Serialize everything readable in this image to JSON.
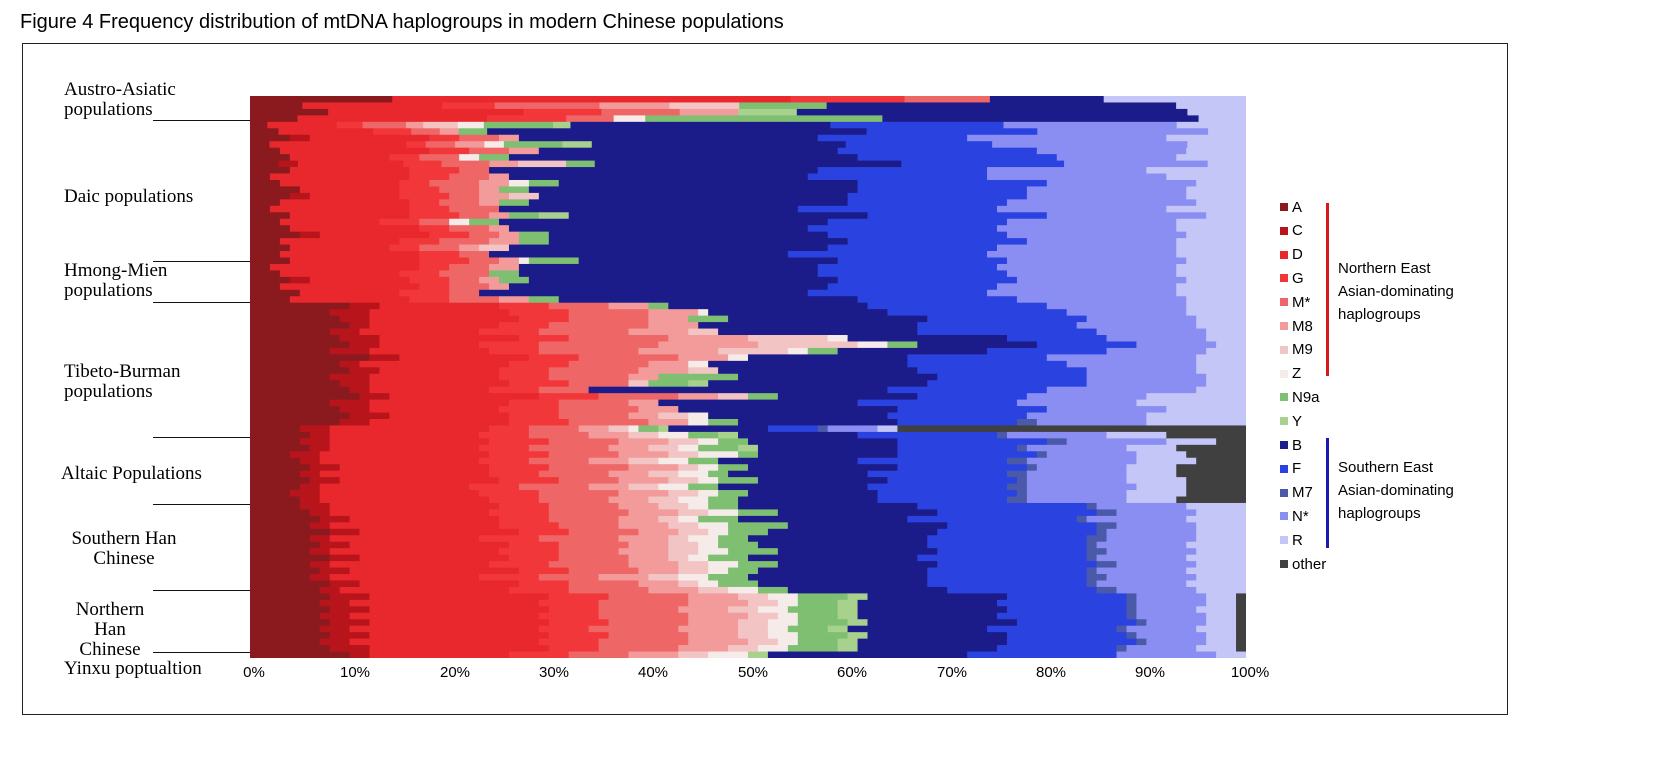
{
  "figure_title": "Figure 4 Frequency distribution of mtDNA haplogroups in modern Chinese populations",
  "groups": [
    {
      "label": "Austro-Asiatic\npopulations"
    },
    {
      "label": "Daic populations"
    },
    {
      "label": "Hmong-Mien\npopulations"
    },
    {
      "label": "Tibeto-Burman\npopulations"
    },
    {
      "label": "Altaic Populations"
    },
    {
      "label": "Southern Han\nChinese"
    },
    {
      "label": "Northern Han\nChinese"
    },
    {
      "label": "Yinxu poptualtion"
    }
  ],
  "legend": {
    "items": [
      {
        "label": "A",
        "color": "#8b1a1f"
      },
      {
        "label": "C",
        "color": "#b8141b"
      },
      {
        "label": "D",
        "color": "#e8282c"
      },
      {
        "label": "G",
        "color": "#f2373a"
      },
      {
        "label": "M*",
        "color": "#ee6666"
      },
      {
        "label": "M8",
        "color": "#f39a9a"
      },
      {
        "label": "M9",
        "color": "#f3c4c4"
      },
      {
        "label": "Z",
        "color": "#f5ecea"
      },
      {
        "label": "N9a",
        "color": "#7fbf72"
      },
      {
        "label": "Y",
        "color": "#a9d18e"
      },
      {
        "label": "B",
        "color": "#1b1b8a"
      },
      {
        "label": "F",
        "color": "#2a42e0"
      },
      {
        "label": "M7",
        "color": "#4a5aa8"
      },
      {
        "label": "N*",
        "color": "#8a8ef2"
      },
      {
        "label": "R",
        "color": "#c4c6f7"
      },
      {
        "label": "other",
        "color": "#404040"
      }
    ],
    "north_label": "Northern East\nAsian-dominating\nhaplogroups",
    "south_label": "Southern East\nAsian-dominating\nhaplogroups",
    "north_color": "#d8171c",
    "south_color": "#1a1ab0"
  },
  "chart_data": {
    "type": "bar",
    "orientation": "horizontal",
    "stacked": true,
    "normalized": true,
    "xlim": [
      0,
      100
    ],
    "xticks": [
      "0%",
      "10%",
      "20%",
      "30%",
      "40%",
      "50%",
      "60%",
      "70%",
      "80%",
      "90%",
      "100%"
    ],
    "series_order": [
      "A",
      "C",
      "D",
      "G",
      "M*",
      "M8",
      "M9",
      "Z",
      "N9a",
      "Y",
      "B",
      "F",
      "M7",
      "N*",
      "R",
      "other"
    ],
    "group_row_counts": [
      4,
      16,
      12,
      19,
      12,
      14,
      9,
      1
    ],
    "rows": [
      [
        5,
        0,
        14,
        4,
        3,
        0,
        0,
        0,
        0,
        0,
        4,
        0,
        0,
        0,
        5,
        0
      ],
      [
        3,
        0,
        8,
        3,
        6,
        4,
        4,
        0,
        5,
        0,
        20,
        0,
        0,
        0,
        4,
        0
      ],
      [
        4,
        0,
        10,
        4,
        4,
        3,
        0,
        0,
        0,
        3,
        20,
        0,
        0,
        0,
        3,
        0
      ],
      [
        3,
        0,
        12,
        5,
        3,
        0,
        0,
        2,
        15,
        0,
        20,
        0,
        0,
        0,
        3,
        0
      ],
      [
        2,
        0,
        8,
        3,
        5,
        2,
        4,
        3,
        8,
        2,
        30,
        20,
        0,
        20,
        8,
        0
      ],
      [
        3,
        0,
        10,
        4,
        3,
        2,
        0,
        0,
        3,
        0,
        40,
        18,
        0,
        18,
        4,
        0
      ],
      [
        4,
        2,
        12,
        3,
        4,
        2,
        0,
        0,
        0,
        0,
        30,
        15,
        0,
        20,
        8,
        0
      ],
      [
        2,
        0,
        14,
        2,
        3,
        3,
        0,
        2,
        6,
        3,
        26,
        15,
        0,
        20,
        6,
        0
      ],
      [
        3,
        0,
        15,
        4,
        4,
        3,
        0,
        0,
        0,
        0,
        30,
        20,
        0,
        15,
        6,
        0
      ],
      [
        4,
        0,
        10,
        3,
        4,
        0,
        0,
        2,
        3,
        0,
        35,
        20,
        0,
        12,
        7,
        0
      ],
      [
        3,
        2,
        11,
        4,
        5,
        3,
        5,
        0,
        3,
        0,
        32,
        17,
        0,
        15,
        4,
        0
      ],
      [
        4,
        0,
        12,
        5,
        3,
        0,
        0,
        0,
        0,
        0,
        33,
        17,
        0,
        16,
        10,
        0
      ],
      [
        2,
        0,
        14,
        4,
        4,
        2,
        0,
        0,
        0,
        0,
        30,
        18,
        0,
        18,
        8,
        0
      ],
      [
        3,
        0,
        12,
        3,
        5,
        3,
        0,
        2,
        3,
        0,
        30,
        19,
        0,
        15,
        5,
        0
      ],
      [
        5,
        0,
        10,
        4,
        4,
        2,
        0,
        0,
        3,
        0,
        33,
        17,
        0,
        16,
        6,
        0
      ],
      [
        4,
        2,
        9,
        5,
        3,
        3,
        3,
        0,
        0,
        0,
        31,
        18,
        0,
        16,
        6,
        0
      ],
      [
        3,
        0,
        13,
        3,
        4,
        2,
        0,
        0,
        3,
        0,
        32,
        16,
        0,
        19,
        5,
        0
      ],
      [
        2,
        0,
        14,
        4,
        5,
        0,
        0,
        0,
        0,
        0,
        30,
        20,
        0,
        17,
        8,
        0
      ],
      [
        4,
        0,
        12,
        5,
        3,
        2,
        0,
        0,
        3,
        3,
        30,
        18,
        0,
        16,
        4,
        0
      ],
      [
        3,
        0,
        10,
        4,
        3,
        0,
        0,
        2,
        3,
        0,
        33,
        18,
        0,
        17,
        7,
        0
      ],
      [
        4,
        0,
        13,
        3,
        4,
        2,
        0,
        0,
        0,
        0,
        30,
        19,
        0,
        18,
        7,
        0
      ],
      [
        5,
        2,
        11,
        4,
        3,
        2,
        0,
        0,
        3,
        0,
        28,
        18,
        0,
        18,
        6,
        0
      ],
      [
        3,
        0,
        12,
        4,
        5,
        3,
        0,
        0,
        3,
        0,
        30,
        18,
        0,
        15,
        7,
        0
      ],
      [
        4,
        0,
        10,
        3,
        4,
        2,
        3,
        0,
        0,
        0,
        32,
        17,
        0,
        18,
        7,
        0
      ],
      [
        3,
        0,
        14,
        4,
        3,
        0,
        0,
        0,
        0,
        0,
        30,
        20,
        0,
        19,
        7,
        0
      ],
      [
        4,
        0,
        13,
        5,
        3,
        2,
        0,
        1,
        5,
        0,
        26,
        17,
        0,
        18,
        6,
        0
      ],
      [
        2,
        0,
        15,
        3,
        4,
        3,
        0,
        0,
        0,
        0,
        30,
        18,
        0,
        18,
        7,
        0
      ],
      [
        3,
        0,
        12,
        4,
        5,
        0,
        0,
        0,
        3,
        0,
        30,
        19,
        0,
        17,
        7,
        0
      ],
      [
        4,
        2,
        10,
        4,
        3,
        2,
        0,
        0,
        3,
        0,
        31,
        18,
        0,
        17,
        6,
        0
      ],
      [
        3,
        0,
        14,
        3,
        4,
        2,
        0,
        0,
        0,
        0,
        32,
        17,
        0,
        18,
        7,
        0
      ],
      [
        5,
        0,
        10,
        5,
        3,
        0,
        0,
        0,
        0,
        0,
        33,
        18,
        0,
        19,
        7,
        0
      ],
      [
        4,
        0,
        12,
        4,
        5,
        3,
        0,
        0,
        3,
        0,
        30,
        16,
        0,
        17,
        6,
        0
      ],
      [
        10,
        3,
        12,
        5,
        6,
        4,
        0,
        0,
        2,
        0,
        20,
        18,
        0,
        14,
        6,
        0
      ],
      [
        8,
        4,
        14,
        6,
        8,
        5,
        0,
        1,
        0,
        0,
        18,
        18,
        0,
        12,
        6,
        0
      ],
      [
        9,
        3,
        15,
        5,
        8,
        4,
        0,
        0,
        4,
        0,
        20,
        16,
        0,
        11,
        5,
        0
      ],
      [
        10,
        2,
        13,
        5,
        10,
        5,
        0,
        0,
        0,
        0,
        22,
        16,
        0,
        12,
        5,
        0
      ],
      [
        8,
        3,
        12,
        6,
        9,
        6,
        3,
        0,
        0,
        0,
        20,
        18,
        0,
        11,
        4,
        0
      ],
      [
        9,
        4,
        14,
        5,
        10,
        8,
        8,
        2,
        0,
        0,
        16,
        10,
        0,
        10,
        4,
        0
      ],
      [
        10,
        3,
        10,
        6,
        12,
        10,
        10,
        3,
        3,
        0,
        12,
        10,
        0,
        8,
        3,
        0
      ],
      [
        8,
        4,
        12,
        5,
        10,
        8,
        7,
        2,
        3,
        0,
        15,
        12,
        0,
        10,
        4,
        0
      ],
      [
        12,
        3,
        13,
        5,
        10,
        5,
        0,
        2,
        0,
        0,
        16,
        14,
        0,
        15,
        5,
        0
      ],
      [
        9,
        2,
        15,
        6,
        8,
        4,
        0,
        2,
        0,
        0,
        20,
        16,
        0,
        13,
        5,
        0
      ],
      [
        10,
        3,
        12,
        5,
        9,
        5,
        3,
        0,
        0,
        0,
        20,
        17,
        0,
        11,
        5,
        0
      ],
      [
        8,
        4,
        13,
        5,
        8,
        3,
        0,
        0,
        8,
        0,
        20,
        15,
        0,
        12,
        4,
        0
      ],
      [
        9,
        3,
        14,
        6,
        6,
        0,
        2,
        0,
        4,
        2,
        22,
        16,
        0,
        12,
        4,
        0
      ],
      [
        10,
        2,
        12,
        5,
        5,
        0,
        0,
        0,
        0,
        0,
        30,
        16,
        0,
        15,
        5,
        0
      ],
      [
        11,
        3,
        15,
        6,
        8,
        4,
        3,
        0,
        3,
        0,
        14,
        11,
        0,
        12,
        10,
        0
      ],
      [
        8,
        4,
        14,
        5,
        7,
        3,
        0,
        0,
        0,
        0,
        20,
        16,
        0,
        12,
        11,
        0
      ],
      [
        9,
        3,
        13,
        6,
        8,
        4,
        0,
        0,
        0,
        0,
        22,
        15,
        0,
        12,
        8,
        0
      ],
      [
        10,
        4,
        12,
        5,
        7,
        3,
        3,
        2,
        0,
        0,
        18,
        14,
        0,
        12,
        10,
        0
      ],
      [
        9,
        3,
        14,
        6,
        8,
        4,
        0,
        2,
        3,
        0,
        16,
        12,
        2,
        11,
        10,
        0
      ],
      [
        5,
        3,
        16,
        4,
        5,
        3,
        2,
        1,
        2,
        1,
        10,
        5,
        1,
        5,
        2,
        35
      ],
      [
        6,
        2,
        15,
        5,
        6,
        4,
        3,
        3,
        3,
        2,
        12,
        14,
        1,
        10,
        6,
        8
      ],
      [
        5,
        3,
        16,
        6,
        7,
        5,
        3,
        2,
        3,
        0,
        15,
        15,
        2,
        10,
        5,
        3
      ],
      [
        6,
        2,
        15,
        5,
        8,
        4,
        3,
        2,
        4,
        2,
        14,
        12,
        1,
        10,
        5,
        7
      ],
      [
        4,
        3,
        17,
        6,
        7,
        5,
        3,
        4,
        2,
        0,
        14,
        14,
        1,
        9,
        5,
        6
      ],
      [
        5,
        2,
        16,
        5,
        6,
        4,
        3,
        3,
        3,
        0,
        14,
        15,
        2,
        11,
        6,
        5
      ],
      [
        6,
        3,
        15,
        6,
        8,
        5,
        2,
        2,
        3,
        0,
        15,
        13,
        1,
        9,
        5,
        7
      ],
      [
        5,
        2,
        17,
        5,
        7,
        4,
        3,
        3,
        2,
        0,
        14,
        14,
        2,
        10,
        5,
        7
      ],
      [
        6,
        3,
        16,
        6,
        6,
        5,
        3,
        2,
        4,
        0,
        13,
        13,
        1,
        10,
        6,
        6
      ],
      [
        5,
        2,
        15,
        5,
        7,
        4,
        3,
        3,
        3,
        0,
        15,
        14,
        2,
        11,
        5,
        6
      ],
      [
        4,
        3,
        16,
        6,
        8,
        5,
        3,
        2,
        3,
        0,
        13,
        14,
        1,
        10,
        6,
        6
      ],
      [
        5,
        2,
        17,
        5,
        7,
        4,
        3,
        3,
        3,
        0,
        14,
        13,
        2,
        10,
        5,
        7
      ],
      [
        5,
        3,
        17,
        5,
        7,
        4,
        3,
        2,
        3,
        0,
        18,
        17,
        1,
        9,
        6,
        0
      ],
      [
        6,
        2,
        16,
        6,
        8,
        5,
        3,
        3,
        4,
        0,
        16,
        16,
        2,
        8,
        5,
        0
      ],
      [
        7,
        3,
        15,
        5,
        7,
        4,
        2,
        2,
        4,
        0,
        17,
        17,
        1,
        10,
        6,
        0
      ],
      [
        6,
        2,
        17,
        6,
        6,
        5,
        3,
        3,
        6,
        0,
        16,
        15,
        2,
        8,
        5,
        0
      ],
      [
        8,
        3,
        16,
        5,
        7,
        4,
        3,
        2,
        4,
        0,
        17,
        16,
        1,
        9,
        5,
        0
      ],
      [
        6,
        2,
        15,
        6,
        8,
        5,
        2,
        3,
        3,
        0,
        18,
        16,
        2,
        9,
        5,
        0
      ],
      [
        7,
        3,
        16,
        5,
        7,
        4,
        3,
        2,
        4,
        0,
        17,
        16,
        1,
        9,
        6,
        0
      ],
      [
        6,
        2,
        17,
        6,
        6,
        5,
        3,
        3,
        5,
        0,
        16,
        15,
        2,
        9,
        5,
        0
      ],
      [
        8,
        3,
        15,
        5,
        7,
        4,
        2,
        2,
        4,
        0,
        17,
        17,
        1,
        9,
        6,
        0
      ],
      [
        6,
        2,
        16,
        6,
        8,
        5,
        3,
        3,
        4,
        0,
        16,
        16,
        2,
        8,
        5,
        0
      ],
      [
        7,
        3,
        17,
        5,
        7,
        4,
        3,
        2,
        3,
        0,
        17,
        16,
        1,
        9,
        6,
        0
      ],
      [
        6,
        2,
        15,
        6,
        6,
        5,
        3,
        3,
        4,
        0,
        18,
        16,
        2,
        9,
        5,
        0
      ],
      [
        8,
        3,
        16,
        5,
        7,
        4,
        2,
        2,
        4,
        0,
        17,
        16,
        1,
        9,
        6,
        0
      ],
      [
        7,
        2,
        17,
        6,
        8,
        5,
        3,
        3,
        3,
        0,
        16,
        15,
        2,
        8,
        5,
        0
      ],
      [
        8,
        4,
        18,
        6,
        8,
        5,
        3,
        3,
        5,
        2,
        14,
        12,
        1,
        7,
        3,
        1
      ],
      [
        7,
        3,
        19,
        6,
        9,
        6,
        3,
        2,
        4,
        2,
        14,
        13,
        1,
        7,
        3,
        1
      ],
      [
        8,
        4,
        18,
        5,
        8,
        5,
        3,
        3,
        5,
        2,
        15,
        12,
        1,
        6,
        4,
        1
      ],
      [
        7,
        3,
        19,
        6,
        9,
        6,
        3,
        2,
        4,
        2,
        14,
        13,
        1,
        7,
        3,
        1
      ],
      [
        8,
        4,
        18,
        6,
        8,
        5,
        3,
        3,
        5,
        2,
        15,
        12,
        1,
        6,
        3,
        1
      ],
      [
        7,
        3,
        19,
        5,
        9,
        6,
        3,
        2,
        4,
        2,
        14,
        13,
        1,
        7,
        4,
        1
      ],
      [
        8,
        4,
        18,
        6,
        8,
        5,
        3,
        3,
        5,
        2,
        14,
        12,
        1,
        7,
        3,
        1
      ],
      [
        7,
        3,
        19,
        6,
        9,
        6,
        3,
        2,
        4,
        2,
        15,
        13,
        1,
        6,
        3,
        1
      ],
      [
        8,
        4,
        18,
        5,
        8,
        5,
        3,
        3,
        5,
        2,
        14,
        12,
        1,
        7,
        4,
        1
      ],
      [
        10,
        2,
        14,
        6,
        6,
        5,
        3,
        4,
        0,
        2,
        20,
        15,
        0,
        10,
        3,
        0
      ]
    ]
  }
}
